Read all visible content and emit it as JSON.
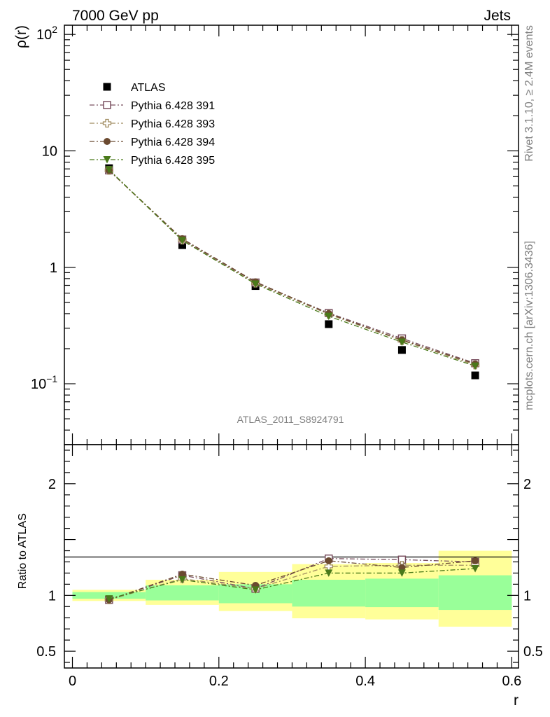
{
  "header": {
    "left": "7000 GeV pp",
    "right": "Jets"
  },
  "side_labels": {
    "rivet": "Rivet 3.1.10, ≥ 2.4M events",
    "mcplots": "mcplots.cern.ch [arXiv:1306.3436]"
  },
  "analysis_id": "ATLAS_2011_S8924791",
  "colors": {
    "atlas": "#000000",
    "p391": "#7a5060",
    "p393": "#a08c60",
    "p394": "#6b4a30",
    "p395": "#4a7a1a",
    "band_yellow": "#ffff99",
    "band_green": "#99ff99"
  },
  "chart_data": [
    {
      "type": "scatter",
      "panel": "main",
      "ylabel": "ρ(r)",
      "xlabel": "",
      "xlim": [
        0,
        0.6
      ],
      "ylim": [
        0.03,
        120
      ],
      "yscale": "log",
      "y_ticks": [
        {
          "v": 0.1,
          "base": "10",
          "exp": "−1"
        },
        {
          "v": 1,
          "base": "1",
          "exp": ""
        },
        {
          "v": 10,
          "base": "10",
          "exp": ""
        },
        {
          "v": 100,
          "base": "10",
          "exp": "2"
        }
      ],
      "x": [
        0.05,
        0.15,
        0.25,
        0.35,
        0.45,
        0.55
      ],
      "xerr": 0.05,
      "legend_position": "top-left",
      "series": [
        {
          "name": "ATLAS",
          "key": "atlas",
          "marker": "square-filled",
          "values": [
            7.1,
            1.55,
            0.69,
            0.325,
            0.195,
            0.118
          ]
        },
        {
          "name": "Pythia 6.428 391",
          "key": "p391",
          "marker": "square-open",
          "values": [
            6.8,
            1.73,
            0.74,
            0.405,
            0.245,
            0.15
          ]
        },
        {
          "name": "Pythia 6.428 393",
          "key": "p393",
          "marker": "cross-open",
          "values": [
            6.8,
            1.71,
            0.73,
            0.395,
            0.235,
            0.145
          ]
        },
        {
          "name": "Pythia 6.428 394",
          "key": "p394",
          "marker": "circle-filled",
          "values": [
            6.8,
            1.76,
            0.75,
            0.4,
            0.238,
            0.148
          ]
        },
        {
          "name": "Pythia 6.428 395",
          "key": "p395",
          "marker": "triangle-down",
          "values": [
            6.9,
            1.7,
            0.72,
            0.38,
            0.228,
            0.142
          ]
        }
      ]
    },
    {
      "type": "scatter",
      "panel": "ratio",
      "ylabel": "Ratio to ATLAS",
      "xlabel": "r",
      "xlim": [
        0,
        0.6
      ],
      "ylim": [
        0.35,
        2.35
      ],
      "y_ticks": [
        0.5,
        1,
        2
      ],
      "x_ticks": [
        0,
        0.2,
        0.4,
        0.6
      ],
      "x_tick_labels": [
        "0",
        "0.2",
        "0.4",
        "0.6"
      ],
      "bands": {
        "edges": [
          0,
          0.1,
          0.2,
          0.3,
          0.4,
          0.5,
          0.6
        ],
        "green": [
          [
            0.97,
            1.03
          ],
          [
            0.955,
            1.09
          ],
          [
            0.93,
            1.1
          ],
          [
            0.9,
            1.14
          ],
          [
            0.895,
            1.15
          ],
          [
            0.87,
            1.18
          ]
        ],
        "yellow": [
          [
            0.95,
            1.05
          ],
          [
            0.915,
            1.14
          ],
          [
            0.86,
            1.21
          ],
          [
            0.795,
            1.28
          ],
          [
            0.785,
            1.29
          ],
          [
            0.72,
            1.4
          ]
        ]
      },
      "x": [
        0.05,
        0.15,
        0.25,
        0.35,
        0.45,
        0.55
      ],
      "series": [
        {
          "name": "Pythia 6.428 391",
          "key": "p391",
          "marker": "square-open",
          "values": [
            0.96,
            1.18,
            1.06,
            1.33,
            1.32,
            1.3
          ]
        },
        {
          "name": "Pythia 6.428 393",
          "key": "p393",
          "marker": "cross-open",
          "values": [
            0.96,
            1.15,
            1.06,
            1.26,
            1.27,
            1.27
          ]
        },
        {
          "name": "Pythia 6.428 394",
          "key": "p394",
          "marker": "circle-filled",
          "values": [
            0.96,
            1.19,
            1.09,
            1.31,
            1.25,
            1.31
          ]
        },
        {
          "name": "Pythia 6.428 395",
          "key": "p395",
          "marker": "triangle-down",
          "values": [
            0.97,
            1.14,
            1.05,
            1.2,
            1.2,
            1.24
          ]
        }
      ]
    }
  ]
}
